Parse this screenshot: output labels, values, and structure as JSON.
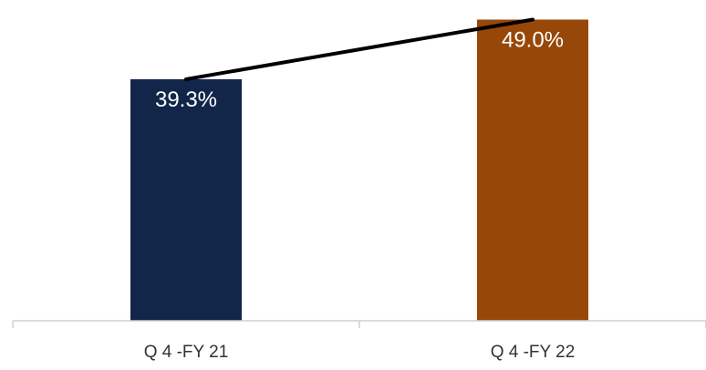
{
  "chart_data": {
    "type": "bar",
    "categories": [
      "Q 4 -FY 21",
      "Q 4 -FY 22"
    ],
    "values": [
      39.3,
      49.0
    ],
    "data_labels": [
      "39.3%",
      "49.0%"
    ],
    "unit": "%",
    "ylim": [
      0,
      51
    ],
    "grid": false,
    "legend": "none",
    "trend_line": true,
    "colors": {
      "bars": [
        "#12264a",
        "#974708"
      ],
      "trend_line": "#000000",
      "axis": "#d0d0d0",
      "data_label": "#ffffff",
      "tick_label": "#333333"
    }
  }
}
